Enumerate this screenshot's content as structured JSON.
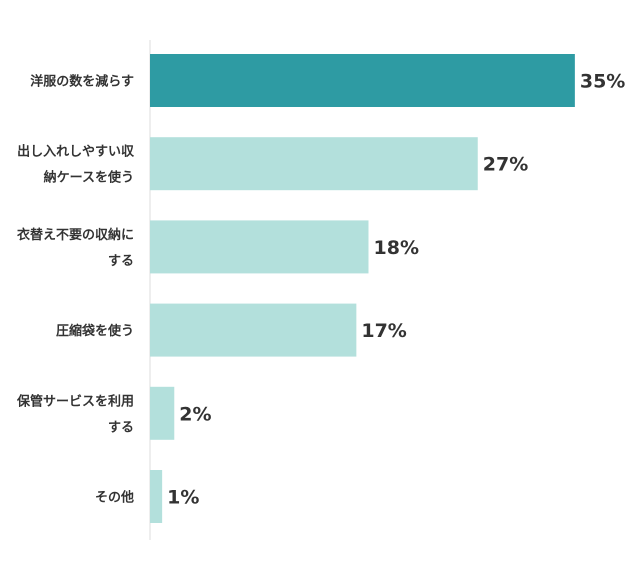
{
  "chart_data": {
    "type": "bar",
    "orientation": "horizontal",
    "title": "",
    "xlabel": "",
    "ylabel": "",
    "categories": [
      "洋服の数を減らす",
      "出し入れしやすい収納ケースを使う",
      "衣替え不要の収納にする",
      "圧縮袋を使う",
      "保管サービスを利用する",
      "その他"
    ],
    "category_lines": [
      [
        "洋服の数を減らす"
      ],
      [
        "出し入れしやすい収",
        "納ケースを使う"
      ],
      [
        "衣替え不要の収納に",
        "する"
      ],
      [
        "圧縮袋を使う"
      ],
      [
        "保管サービスを利用",
        "する"
      ],
      [
        "その他"
      ]
    ],
    "values": [
      35,
      27,
      18,
      17,
      2,
      1
    ],
    "value_labels": [
      "35%",
      "27%",
      "18%",
      "17%",
      "2%",
      "1%"
    ],
    "xlim": [
      0,
      36
    ],
    "grid": false,
    "legend": "none",
    "colors": {
      "highlight": "#2e9ba3",
      "default": "#b3e0dc",
      "axis": "#dddddd",
      "text": "#333333"
    },
    "highlight_index": 0
  }
}
